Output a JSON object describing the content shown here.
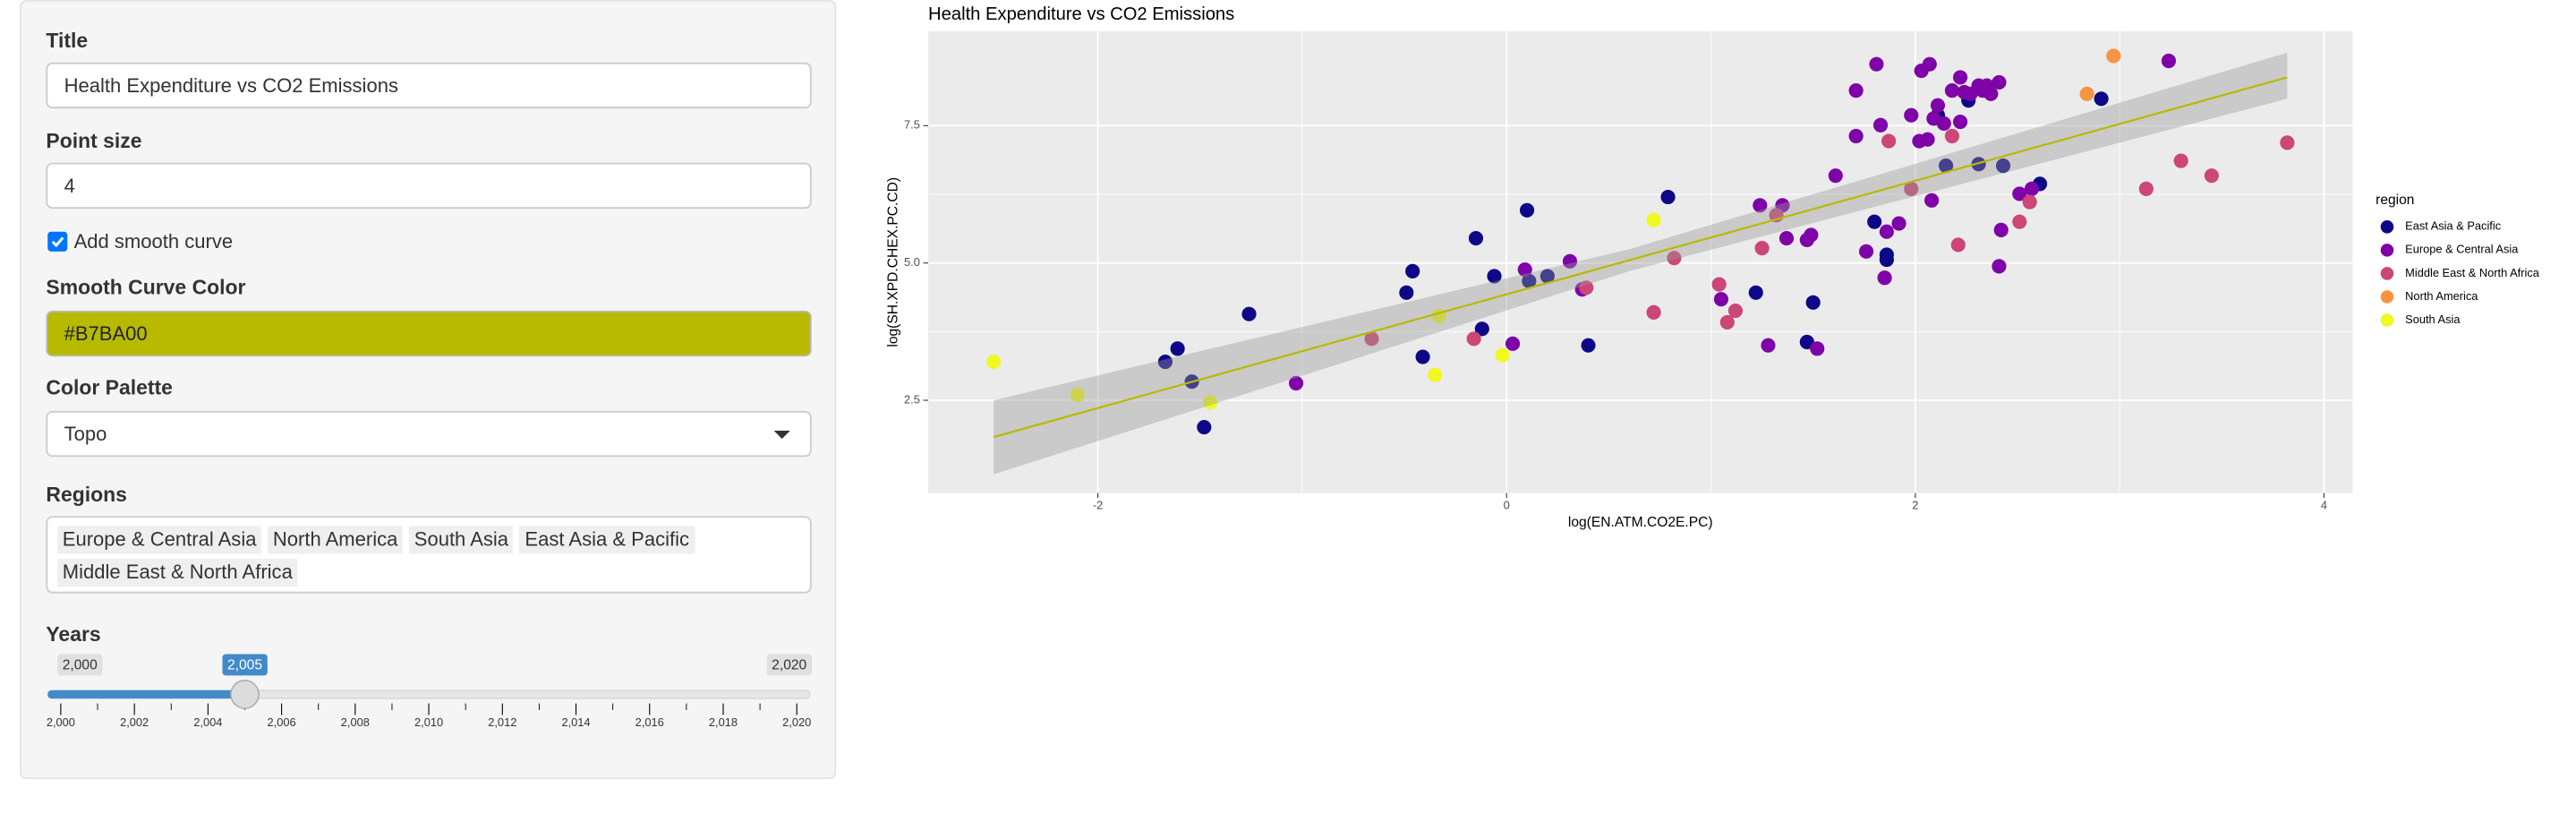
{
  "sidebar": {
    "title_label": "Title",
    "title_value": "Health Expenditure vs CO2 Emissions",
    "point_size_label": "Point size",
    "point_size": 4,
    "smooth_checkbox": "Add smooth curve",
    "smooth_checked": true,
    "smooth_color_label": "Smooth Curve Color",
    "smooth_color": "#B7BA00",
    "palette_label": "Color Palette",
    "palette": "Topo",
    "regions_label": "Regions",
    "regions": [
      "Europe & Central Asia",
      "North America",
      "South Asia",
      "East Asia & Pacific",
      "Middle East & North Africa"
    ],
    "years_label": "Years",
    "years": {
      "min": {
        "value": 2000,
        "label": "2,000"
      },
      "max": {
        "value": 2020,
        "label": "2,020"
      },
      "value": {
        "value": 2005,
        "label": "2,005"
      },
      "ticks": [
        {
          "value": 2000,
          "label": "2,000"
        },
        {
          "value": 2002,
          "label": "2,002"
        },
        {
          "value": 2004,
          "label": "2,004"
        },
        {
          "value": 2006,
          "label": "2,006"
        },
        {
          "value": 2008,
          "label": "2,008"
        },
        {
          "value": 2010,
          "label": "2,010"
        },
        {
          "value": 2012,
          "label": "2,012"
        },
        {
          "value": 2014,
          "label": "2,014"
        },
        {
          "value": 2016,
          "label": "2,016"
        },
        {
          "value": 2018,
          "label": "2,018"
        },
        {
          "value": 2020,
          "label": "2,020"
        }
      ]
    }
  },
  "chart_data": {
    "type": "scatter",
    "title": "Health Expenditure vs CO2 Emissions",
    "x_label": "log(EN.ATM.CO2E.PC)",
    "y_label": "log(SH.XPD.CHEX.PC.CD)",
    "legend_title": "region",
    "legend": "right",
    "grid": true,
    "xlim": [
      -2.83,
      4.14
    ],
    "ylim": [
      0.81,
      9.22
    ],
    "xticks": [
      -2,
      0,
      2,
      4
    ],
    "yticks": [
      2.5,
      {
        "value": 5,
        "label": "5.0"
      },
      {
        "value": 7.5,
        "label": "7.5"
      }
    ],
    "series": [
      {
        "name": "East Asia & Pacific",
        "color": "#0D0887",
        "x": [
          -1.67,
          -1.61,
          -1.54,
          -1.48,
          -1.26,
          -0.49,
          -0.46,
          -0.41,
          -0.15,
          -0.12,
          -0.06,
          0.1,
          0.11,
          0.2,
          0.4,
          0.79,
          1.22,
          1.47,
          1.5,
          1.8,
          1.86,
          1.86,
          2.11,
          2.15,
          2.26,
          2.31,
          2.43,
          2.61,
          2.91
        ],
        "values": [
          3.2,
          3.44,
          2.84,
          2.01,
          4.07,
          4.46,
          4.85,
          3.29,
          5.45,
          3.8,
          4.76,
          5.96,
          4.67,
          4.76,
          3.5,
          6.2,
          4.46,
          3.56,
          4.28,
          5.75,
          5.15,
          5.06,
          7.69,
          6.77,
          7.96,
          6.8,
          6.77,
          6.44,
          7.99
        ]
      },
      {
        "name": "Europe & Central Asia",
        "color": "#7E03A8",
        "x": [
          -1.03,
          0.03,
          0.09,
          0.31,
          0.37,
          1.05,
          1.24,
          1.28,
          1.35,
          1.37,
          1.47,
          1.49,
          1.52,
          1.61,
          1.71,
          1.71,
          1.76,
          1.81,
          1.83,
          1.85,
          1.86,
          1.92,
          1.98,
          2.02,
          2.03,
          2.06,
          2.07,
          2.08,
          2.09,
          2.11,
          2.14,
          2.18,
          2.22,
          2.22,
          2.24,
          2.27,
          2.31,
          2.33,
          2.35,
          2.37,
          2.41,
          2.41,
          2.42,
          2.51,
          2.57,
          3.24
        ],
        "values": [
          2.81,
          3.53,
          4.88,
          5.03,
          4.52,
          4.34,
          6.05,
          3.5,
          6.05,
          5.45,
          5.42,
          5.51,
          3.44,
          6.59,
          7.31,
          8.14,
          5.21,
          8.62,
          7.51,
          4.73,
          5.57,
          5.72,
          7.69,
          7.22,
          8.5,
          7.25,
          8.62,
          6.14,
          7.63,
          7.87,
          7.54,
          8.14,
          8.38,
          7.57,
          8.11,
          8.08,
          8.23,
          8.14,
          8.23,
          8.08,
          8.29,
          4.94,
          5.6,
          6.26,
          6.35,
          8.68
        ]
      },
      {
        "name": "Middle East & North Africa",
        "color": "#CC4678",
        "x": [
          -0.66,
          -0.16,
          0.39,
          0.72,
          0.82,
          1.04,
          1.08,
          1.12,
          1.25,
          1.32,
          1.87,
          1.98,
          2.18,
          2.21,
          2.51,
          2.56,
          3.13,
          3.3,
          3.45,
          3.82
        ],
        "values": [
          3.62,
          3.62,
          4.55,
          4.1,
          5.09,
          4.61,
          3.92,
          4.13,
          5.27,
          5.87,
          7.22,
          6.35,
          7.31,
          5.33,
          5.75,
          6.11,
          6.35,
          6.86,
          6.59,
          7.19
        ]
      },
      {
        "name": "North America",
        "color": "#F89441",
        "x": [
          2.84,
          2.97
        ],
        "values": [
          8.08,
          8.77
        ]
      },
      {
        "name": "South Asia",
        "color": "#F0F921",
        "x": [
          -2.51,
          -2.1,
          -1.45,
          -0.35,
          -0.33,
          -0.02,
          0.72
        ],
        "values": [
          3.2,
          2.6,
          2.46,
          2.96,
          4.04,
          3.32,
          5.78
        ]
      }
    ],
    "smooth": {
      "x": [
        -2.51,
        0.6,
        3.82
      ],
      "y": [
        1.83,
        5.05,
        8.38
      ],
      "lower": [
        1.15,
        4.85,
        7.99
      ],
      "upper": [
        2.5,
        5.25,
        8.83
      ]
    }
  }
}
